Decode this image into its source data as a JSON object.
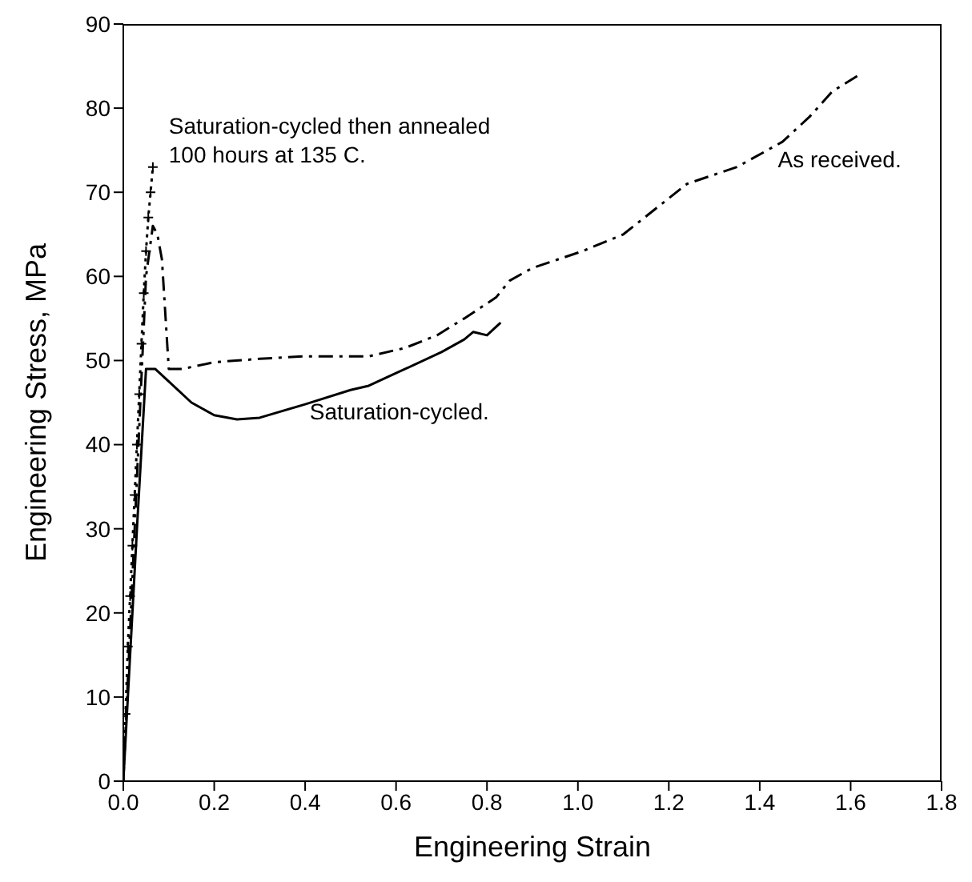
{
  "chart_data": {
    "type": "line",
    "xlabel": "Engineering Strain",
    "ylabel": "Engineering Stress, MPa",
    "xlim": [
      0,
      1.8
    ],
    "xticks": [
      {
        "value": 0,
        "label": "0.0"
      },
      0.2,
      0.4,
      0.6,
      0.8,
      {
        "value": 1,
        "label": "1.0"
      },
      1.2,
      1.4,
      1.6,
      1.8
    ],
    "ylim": [
      0,
      90
    ],
    "yticks": [
      0,
      10,
      20,
      30,
      40,
      50,
      60,
      70,
      80,
      90
    ],
    "grid": false,
    "legend": false,
    "series": [
      {
        "color": "#000000",
        "line_style": "dotted",
        "marker": "cross",
        "x": [
          0,
          0.005,
          0.01,
          0.015,
          0.02,
          0.025,
          0.03,
          0.035,
          0.04,
          0.045,
          0.05,
          0.055,
          0.06,
          0.065
        ],
        "values": [
          0,
          8,
          16,
          22,
          28,
          34,
          40,
          46,
          52,
          58,
          63,
          67,
          70,
          73
        ]
      },
      {
        "color": "#000000",
        "line_style": "dashed",
        "marker": "none",
        "x": [
          0,
          0.05,
          0.065,
          0.075,
          0.085,
          0.1,
          0.13,
          0.2,
          0.3,
          0.4,
          0.54,
          0.62,
          0.69,
          0.75,
          0.82,
          0.85,
          0.9,
          1.01,
          1.1,
          1.24,
          1.35,
          1.45,
          1.51,
          1.56,
          1.62
        ],
        "values": [
          0,
          60,
          66,
          65,
          62,
          49,
          49,
          49.8,
          50.2,
          50.5,
          50.5,
          51.5,
          53,
          55,
          57.5,
          59.5,
          61,
          63,
          65,
          71,
          73,
          76,
          79,
          82,
          84
        ]
      },
      {
        "color": "#000000",
        "line_style": "solid",
        "marker": "none",
        "x": [
          0,
          0.03,
          0.05,
          0.07,
          0.1,
          0.15,
          0.2,
          0.25,
          0.3,
          0.4,
          0.5,
          0.54,
          0.6,
          0.7,
          0.75,
          0.77,
          0.8,
          0.83
        ],
        "values": [
          0,
          30,
          49,
          49,
          47.5,
          45,
          43.5,
          43,
          43.2,
          44.8,
          46.5,
          47,
          48.5,
          51,
          52.5,
          53.4,
          53,
          54.5
        ]
      }
    ],
    "annotations": [
      "Saturation-cycled then annealed\n100 hours at 135 C.",
      "Saturation-cycled.",
      "As received."
    ]
  }
}
